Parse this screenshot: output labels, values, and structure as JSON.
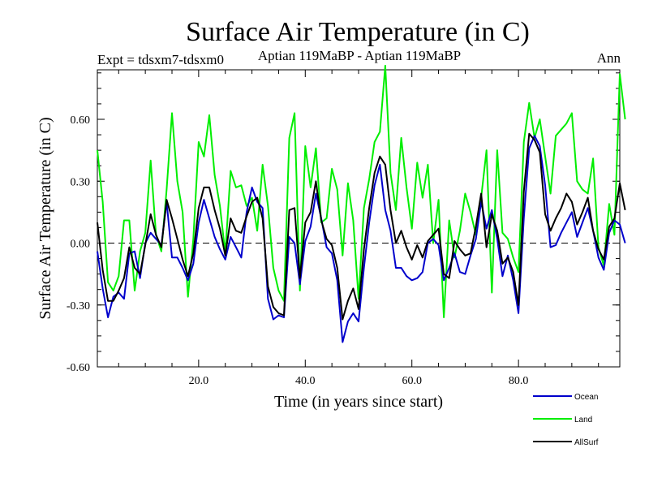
{
  "chart_data": {
    "type": "line",
    "title": "Surface Air Temperature (in C)",
    "subtitle_left": "Expt = tdsxm7-tdsxm0",
    "subtitle_center": "Aptian   119MaBP - Aptian   119MaBP",
    "subtitle_right": "Ann",
    "xlabel": "Time (in years since start)",
    "ylabel": "Surface Air Temperature (in C)",
    "xlim": [
      1,
      99
    ],
    "ylim": [
      -0.6,
      0.84
    ],
    "x_ticks": [
      20,
      40,
      60,
      80
    ],
    "x_tick_labels": [
      "20.0",
      "40.0",
      "60.0",
      "80.0"
    ],
    "y_ticks": [
      -0.6,
      -0.3,
      0.0,
      0.3,
      0.6
    ],
    "y_tick_labels": [
      "-0.60",
      "-0.30",
      "0.00",
      "0.30",
      "0.60"
    ],
    "zero_line": true,
    "grid": false,
    "legend_position": "bottom-right",
    "series": [
      {
        "name": "Ocean",
        "color": "#0000cc",
        "values": [
          -0.04,
          -0.22,
          -0.36,
          -0.26,
          -0.24,
          -0.27,
          -0.05,
          -0.04,
          -0.17,
          0.0,
          0.05,
          0.02,
          -0.01,
          0.2,
          -0.07,
          -0.07,
          -0.12,
          -0.18,
          -0.1,
          0.1,
          0.21,
          0.12,
          0.03,
          -0.03,
          -0.08,
          0.03,
          -0.02,
          -0.07,
          0.15,
          0.27,
          0.2,
          0.17,
          -0.27,
          -0.37,
          -0.35,
          -0.36,
          0.03,
          0.0,
          -0.2,
          0.01,
          0.08,
          0.24,
          0.12,
          -0.02,
          -0.05,
          -0.18,
          -0.48,
          -0.38,
          -0.34,
          -0.38,
          -0.12,
          0.1,
          0.28,
          0.38,
          0.16,
          0.06,
          -0.12,
          -0.12,
          -0.16,
          -0.18,
          -0.17,
          -0.14,
          0.0,
          0.02,
          -0.01,
          -0.18,
          -0.12,
          -0.05,
          -0.14,
          -0.15,
          -0.06,
          0.02,
          0.2,
          0.07,
          0.16,
          0.02,
          -0.16,
          -0.06,
          -0.18,
          -0.34,
          0.12,
          0.46,
          0.52,
          0.47,
          0.28,
          -0.02,
          -0.01,
          0.05,
          0.1,
          0.15,
          0.03,
          0.1,
          0.17,
          0.06,
          -0.07,
          -0.13,
          0.05,
          0.11,
          0.09,
          0.0
        ]
      },
      {
        "name": "Land",
        "color": "#00ee00",
        "values": [
          0.45,
          0.2,
          -0.19,
          -0.23,
          -0.16,
          0.11,
          0.11,
          -0.23,
          -0.04,
          0.05,
          0.4,
          0.04,
          -0.04,
          0.26,
          0.63,
          0.3,
          0.15,
          -0.26,
          0.02,
          0.49,
          0.42,
          0.62,
          0.33,
          0.18,
          -0.05,
          0.35,
          0.27,
          0.28,
          0.18,
          0.22,
          0.06,
          0.38,
          0.18,
          -0.12,
          -0.23,
          -0.28,
          0.51,
          0.63,
          -0.23,
          0.47,
          0.27,
          0.46,
          0.1,
          0.12,
          0.36,
          0.26,
          -0.06,
          0.29,
          0.11,
          -0.27,
          0.17,
          0.31,
          0.49,
          0.54,
          0.86,
          0.34,
          0.16,
          0.51,
          0.27,
          0.07,
          0.39,
          0.22,
          0.38,
          0.0,
          0.21,
          -0.36,
          0.11,
          -0.07,
          0.06,
          0.24,
          0.15,
          0.04,
          0.22,
          0.45,
          -0.24,
          0.45,
          0.05,
          0.02,
          -0.07,
          -0.14,
          0.49,
          0.68,
          0.51,
          0.6,
          0.42,
          0.24,
          0.52,
          0.55,
          0.58,
          0.63,
          0.3,
          0.26,
          0.24,
          0.41,
          -0.02,
          -0.11,
          0.19,
          0.04,
          0.82,
          0.6
        ]
      },
      {
        "name": "AllSurf",
        "color": "#000000",
        "values": [
          0.1,
          -0.13,
          -0.28,
          -0.28,
          -0.23,
          -0.17,
          -0.02,
          -0.12,
          -0.15,
          -0.01,
          0.14,
          0.04,
          -0.02,
          0.21,
          0.12,
          0.02,
          -0.08,
          -0.16,
          -0.05,
          0.17,
          0.27,
          0.27,
          0.16,
          0.07,
          -0.06,
          0.12,
          0.06,
          0.05,
          0.13,
          0.2,
          0.22,
          0.12,
          -0.21,
          -0.31,
          -0.34,
          -0.35,
          0.16,
          0.17,
          -0.17,
          0.1,
          0.15,
          0.3,
          0.11,
          0.02,
          -0.01,
          -0.12,
          -0.37,
          -0.28,
          -0.22,
          -0.32,
          -0.03,
          0.17,
          0.34,
          0.42,
          0.38,
          0.16,
          0.0,
          0.06,
          -0.02,
          -0.08,
          -0.01,
          -0.07,
          0.01,
          0.04,
          0.07,
          -0.15,
          -0.17,
          0.01,
          -0.03,
          -0.06,
          -0.05,
          0.08,
          0.24,
          -0.02,
          0.14,
          0.06,
          -0.1,
          -0.07,
          -0.14,
          -0.3,
          0.25,
          0.53,
          0.5,
          0.44,
          0.14,
          0.06,
          0.12,
          0.17,
          0.24,
          0.2,
          0.09,
          0.15,
          0.22,
          0.06,
          -0.03,
          -0.08,
          0.08,
          0.12,
          0.29,
          0.16
        ]
      }
    ]
  }
}
